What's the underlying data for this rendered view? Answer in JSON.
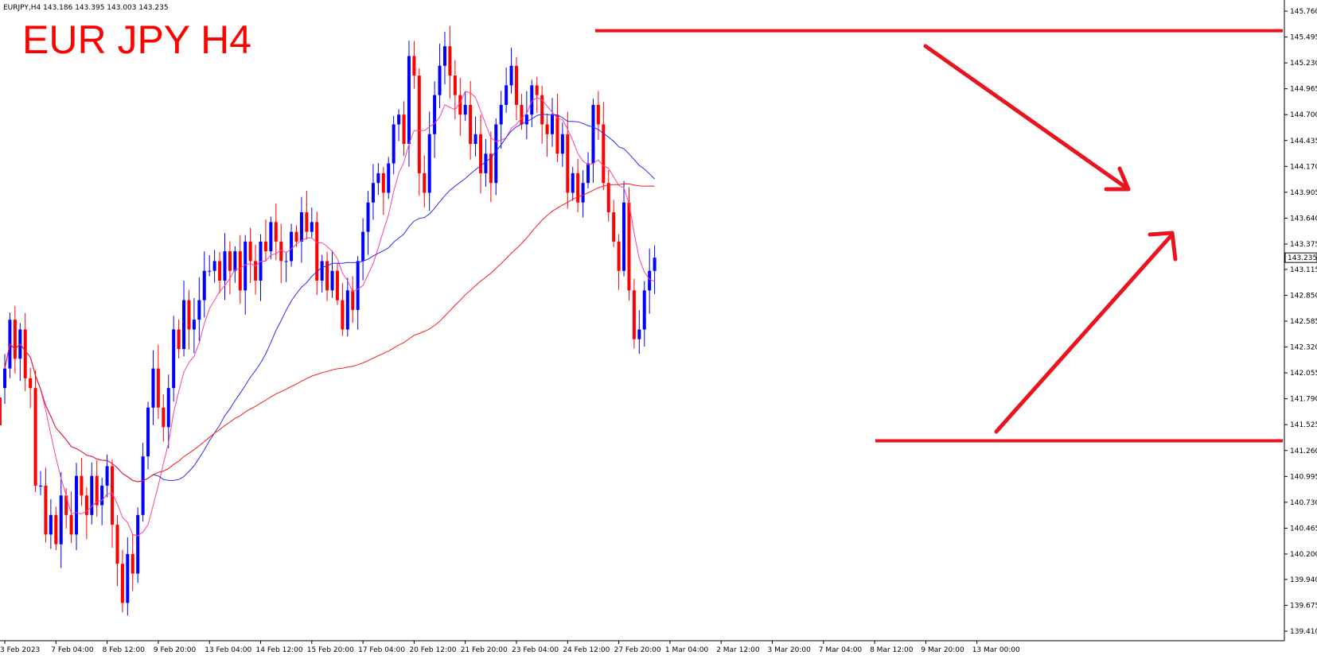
{
  "header": {
    "info_line": "EURJPY,H4  143.186 143.395 143.003 143.235",
    "overlay_title": "EUR JPY H4"
  },
  "colors": {
    "bull": "#0000ff",
    "bear": "#ff0000",
    "ma_fast": "#ff3fa0",
    "ma_mid": "#2a2aff",
    "ma_slow": "#ff1a1a",
    "annotation": "#e8141e",
    "axis": "#000000",
    "background": "#ffffff"
  },
  "chart_data": {
    "type": "candlestick",
    "symbol": "EURJPY",
    "timeframe": "H4",
    "ylim": [
      139.41,
      145.76
    ],
    "current_price": "143.235",
    "y_ticks": [
      "145.760",
      "145.495",
      "145.230",
      "144.965",
      "144.700",
      "144.435",
      "144.170",
      "143.905",
      "143.640",
      "143.375",
      "143.115",
      "142.850",
      "142.585",
      "142.320",
      "142.055",
      "141.790",
      "141.525",
      "141.260",
      "140.995",
      "140.730",
      "140.465",
      "140.200",
      "139.940",
      "139.675",
      "139.410"
    ],
    "x_ticks": [
      {
        "label": "3 Feb 2023",
        "bar": 0
      },
      {
        "label": "7 Feb 04:00",
        "bar": 10
      },
      {
        "label": "8 Feb 12:00",
        "bar": 20
      },
      {
        "label": "9 Feb 20:00",
        "bar": 30
      },
      {
        "label": "13 Feb 04:00",
        "bar": 40
      },
      {
        "label": "14 Feb 12:00",
        "bar": 50
      },
      {
        "label": "15 Feb 20:00",
        "bar": 60
      },
      {
        "label": "17 Feb 04:00",
        "bar": 70
      },
      {
        "label": "20 Feb 12:00",
        "bar": 80
      },
      {
        "label": "21 Feb 20:00",
        "bar": 90
      },
      {
        "label": "23 Feb 04:00",
        "bar": 100
      },
      {
        "label": "24 Feb 12:00",
        "bar": 110
      },
      {
        "label": "27 Feb 20:00",
        "bar": 120
      },
      {
        "label": "1 Mar 04:00",
        "bar": 130
      },
      {
        "label": "2 Mar 12:00",
        "bar": 140
      },
      {
        "label": "3 Mar 20:00",
        "bar": 150
      },
      {
        "label": "7 Mar 04:00",
        "bar": 160
      },
      {
        "label": "8 Mar 12:00",
        "bar": 170
      },
      {
        "label": "9 Mar 20:00",
        "bar": 180
      },
      {
        "label": "13 Mar 00:00",
        "bar": 190
      }
    ],
    "ohlc_close_path": [
      142.1,
      142.6,
      142.2,
      142.5,
      142.0,
      141.9,
      140.9,
      140.9,
      140.4,
      140.6,
      140.3,
      140.8,
      140.6,
      140.4,
      141.0,
      140.8,
      140.6,
      141.0,
      140.7,
      140.9,
      141.1,
      140.5,
      140.1,
      139.7,
      140.2,
      140.0,
      140.6,
      141.2,
      141.7,
      142.1,
      141.7,
      141.5,
      141.9,
      142.5,
      142.3,
      142.8,
      142.5,
      142.6,
      142.8,
      143.1,
      143.1,
      143.2,
      143.0,
      143.3,
      143.1,
      143.3,
      142.9,
      143.4,
      143.2,
      143.0,
      143.4,
      143.3,
      143.6,
      143.4,
      143.2,
      143.2,
      143.5,
      143.4,
      143.7,
      143.5,
      143.6,
      143.0,
      143.2,
      142.9,
      143.1,
      142.8,
      142.5,
      142.9,
      142.7,
      143.2,
      143.5,
      143.8,
      144.0,
      144.1,
      143.9,
      144.2,
      144.6,
      144.7,
      144.4,
      145.3,
      145.1,
      144.1,
      143.9,
      144.5,
      144.9,
      145.2,
      145.4,
      145.1,
      144.9,
      144.7,
      144.8,
      144.4,
      144.5,
      144.1,
      144.3,
      144.0,
      144.6,
      144.8,
      145.0,
      145.2,
      144.8,
      144.6,
      144.7,
      145.0,
      144.9,
      144.6,
      144.5,
      144.7,
      144.3,
      144.5,
      143.9,
      144.1,
      143.8,
      144.0,
      144.2,
      144.8,
      144.6,
      144.0,
      143.7,
      143.4,
      143.1,
      143.8,
      142.9,
      142.4,
      142.5,
      142.9,
      143.1,
      143.235
    ],
    "annotations": {
      "resistance_level": 145.56,
      "support_level": 141.36,
      "arrow_down": "bearish",
      "arrow_up": "bullish"
    }
  }
}
